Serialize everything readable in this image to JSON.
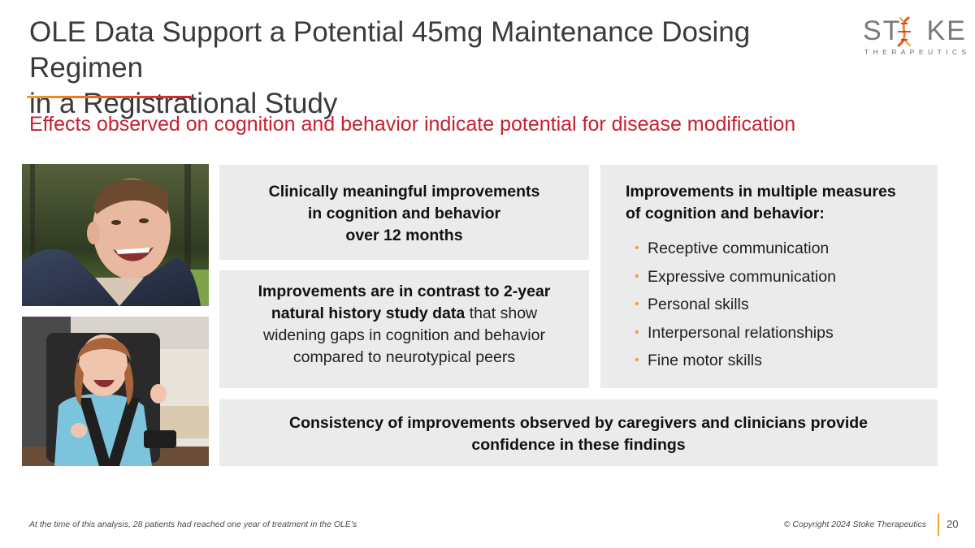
{
  "slide": {
    "title_lines": [
      "OLE Data Support a Potential 45mg Maintenance Dosing Regimen",
      "in a Registrational Study"
    ],
    "subtitle": "Effects observed on cognition and behavior indicate potential for disease modification"
  },
  "logo": {
    "word_left": "ST",
    "word_right": "KE",
    "tagline": "THERAPEUTICS"
  },
  "box1": {
    "lines": [
      "Clinically meaningful improvements",
      "in cognition and behavior",
      "over 12 months"
    ]
  },
  "box2": {
    "line1": "Improvements are in contrast to 2-year",
    "line2_bold": "natural history study data",
    "line2_rest": " that show",
    "line3": "widening gaps in cognition and behavior",
    "line4": "compared to neurotypical peers"
  },
  "box3": {
    "heading_lines": [
      "Improvements in multiple measures",
      "of cognition and behavior:"
    ],
    "bullet_char": "•",
    "bullets": [
      "Receptive communication",
      "Expressive communication",
      "Personal skills",
      "Interpersonal relationships",
      "Fine motor skills"
    ]
  },
  "box4": {
    "lines": [
      "Consistency of improvements observed by caregivers and clinicians provide",
      "confidence in these findings"
    ]
  },
  "footer": {
    "footnote": "At the time of this analysis, 28 patients had reached one year of treatment in the OLE’s",
    "copyright": "© Copyright 2024 Stoke Therapeutics",
    "page_number": "20"
  },
  "colors": {
    "accent_red": "#c8202f",
    "accent_orange": "#f2a33a",
    "box_gray": "#ebebeb",
    "title_gray": "#3a3a3a"
  }
}
